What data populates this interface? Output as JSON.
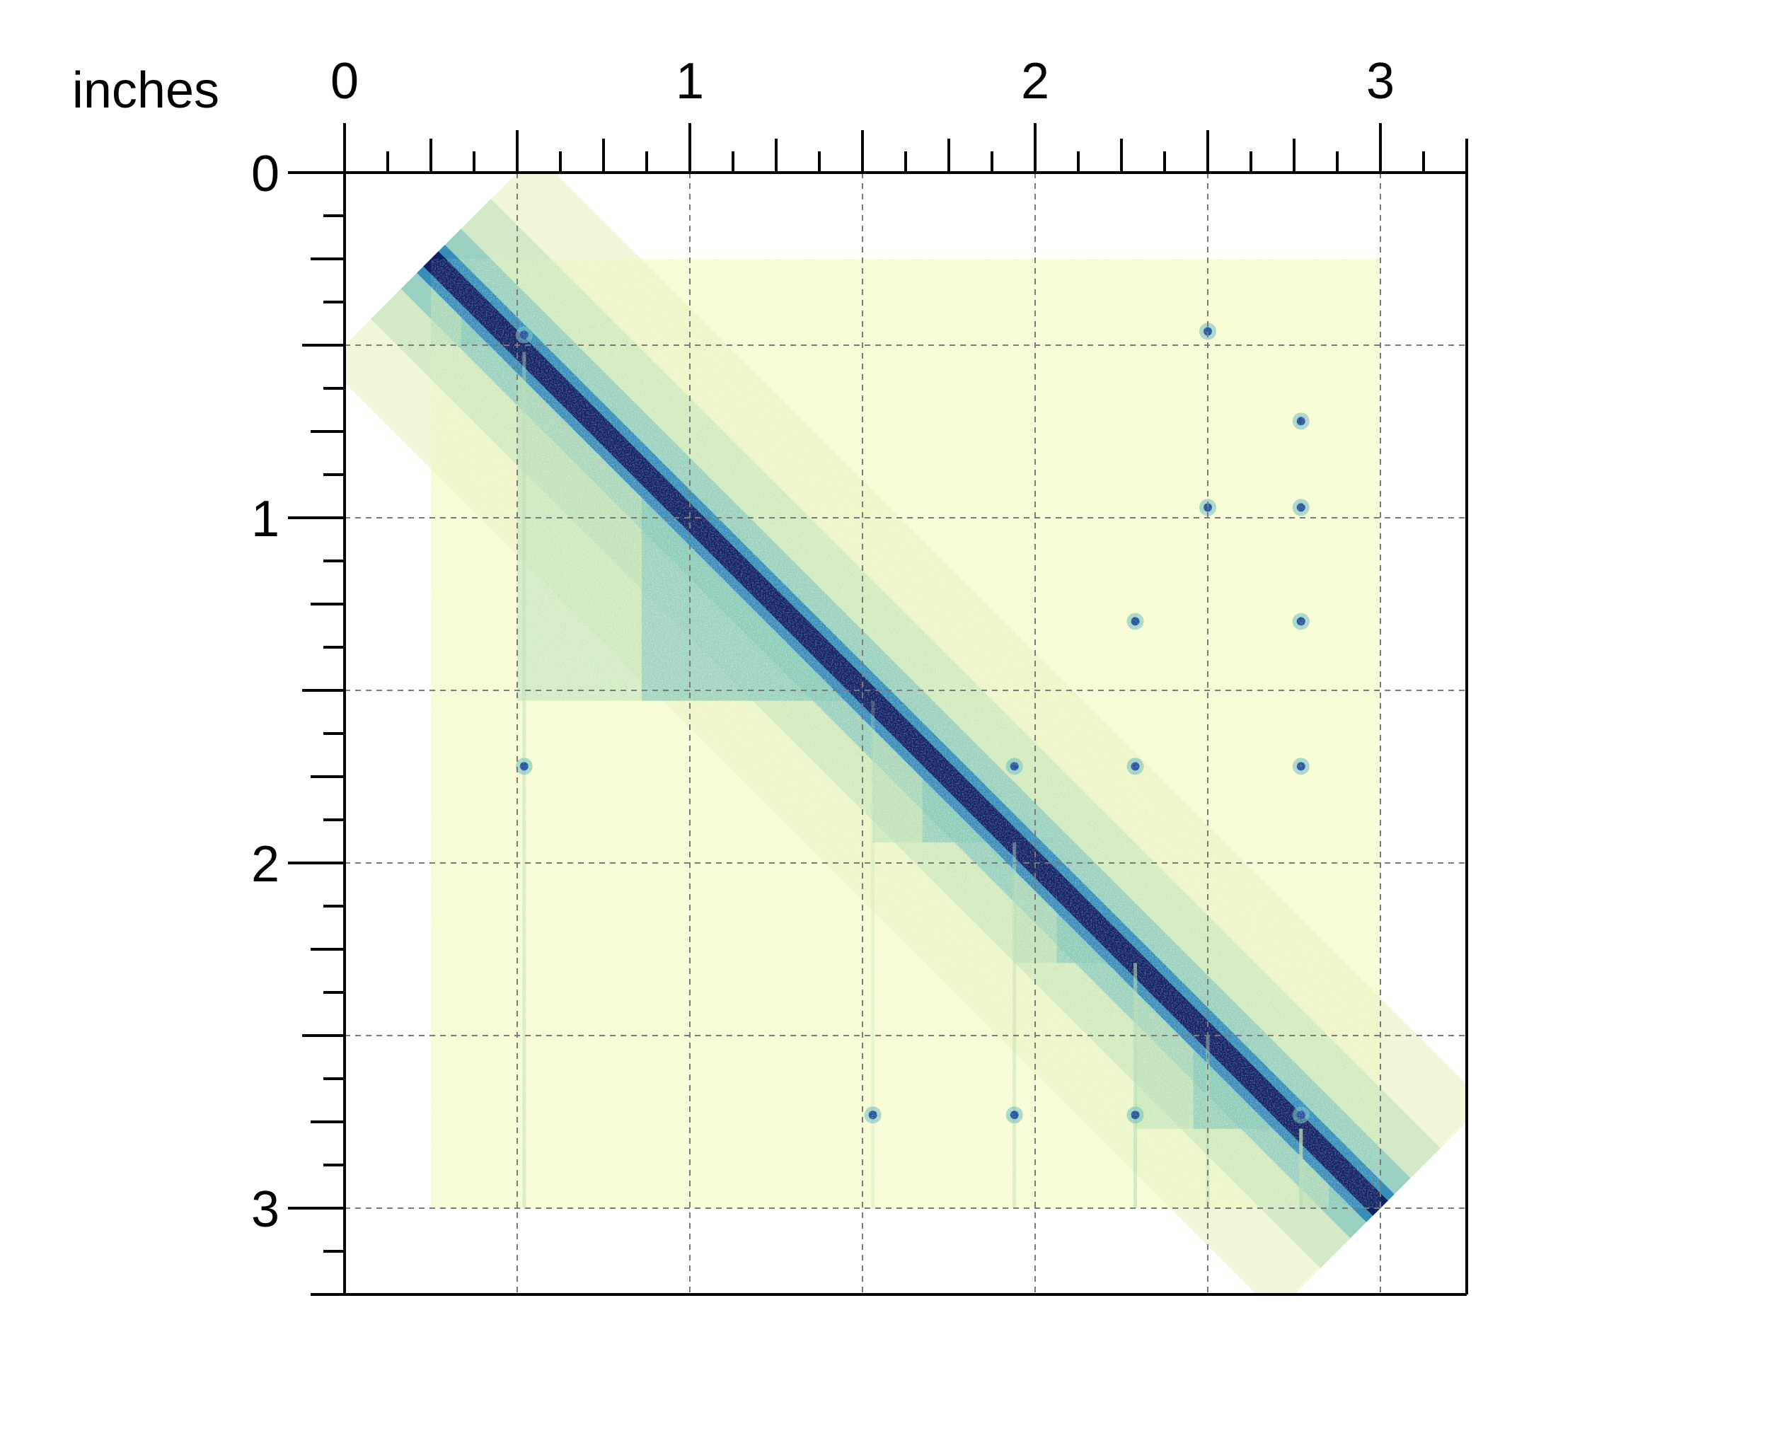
{
  "chart_data": {
    "type": "heatmap",
    "unit_label": "inches",
    "x_axis": {
      "range": [
        0,
        3.25
      ],
      "major_ticks": [
        0,
        1,
        2,
        3
      ],
      "major_tick_labels": [
        "0",
        "1",
        "2",
        "3"
      ],
      "minor_tick_step": 0.125,
      "position": "top"
    },
    "y_axis": {
      "range": [
        0,
        3.25
      ],
      "major_ticks": [
        0,
        1,
        2,
        3
      ],
      "major_tick_labels": [
        "0",
        "1",
        "2",
        "3"
      ],
      "minor_tick_step": 0.125,
      "position": "left",
      "direction": "down"
    },
    "grid": {
      "on": true,
      "style": "dashed",
      "step": 0.5
    },
    "matrix": {
      "x_extent": [
        0.25,
        3.0
      ],
      "y_extent": [
        0.25,
        3.0
      ],
      "domain_boundaries": [
        0.25,
        0.5,
        1.53,
        1.94,
        2.29,
        2.77,
        3.0
      ],
      "loops": [
        [
          0.52,
          0.47
        ],
        [
          0.52,
          1.72
        ],
        [
          1.53,
          2.73
        ],
        [
          1.94,
          2.73
        ],
        [
          2.29,
          2.73
        ],
        [
          2.77,
          2.73
        ],
        [
          1.94,
          1.72
        ],
        [
          2.29,
          1.72
        ],
        [
          2.77,
          1.72
        ],
        [
          2.29,
          1.3
        ],
        [
          2.77,
          1.3
        ],
        [
          2.5,
          0.97
        ],
        [
          2.77,
          0.97
        ],
        [
          2.77,
          0.72
        ],
        [
          2.5,
          0.46
        ]
      ],
      "colormap": [
        "#f7fcd2",
        "#e4f2bb",
        "#b4dcb2",
        "#6bbcbd",
        "#2c86b8",
        "#1f4e9a",
        "#0e1f62"
      ]
    }
  }
}
